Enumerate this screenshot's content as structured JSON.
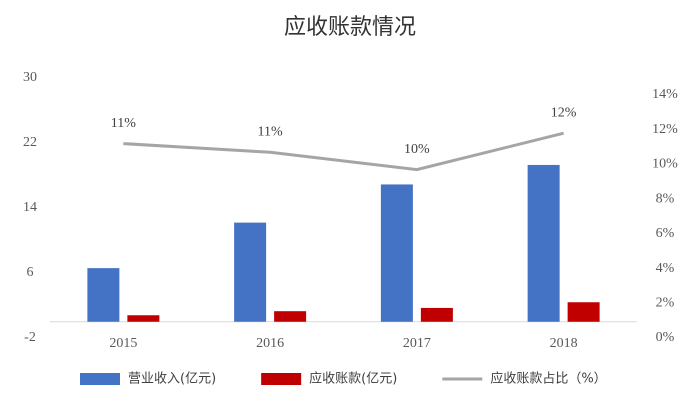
{
  "chart_data": {
    "type": "bar",
    "title": "应收账款情况",
    "categories": [
      "2015",
      "2016",
      "2017",
      "2018"
    ],
    "series": [
      {
        "name": "营业收入(亿元)",
        "color": "#4472c4",
        "values": [
          6.6,
          12.2,
          16.9,
          19.3
        ]
      },
      {
        "name": "应收账款(亿元)",
        "color": "#c00000",
        "values": [
          0.8,
          1.3,
          1.7,
          2.4
        ]
      },
      {
        "name": "应收账款占比（%）",
        "type": "line",
        "axis": "y2",
        "color": "#a5a5a5",
        "values": [
          11.2,
          10.7,
          9.7,
          11.8
        ],
        "value_labels": [
          "11%",
          "11%",
          "10%",
          "12%"
        ]
      }
    ],
    "ylim": [
      -2,
      30
    ],
    "yticks": [
      -2,
      6,
      14,
      22,
      30
    ],
    "y2lim": [
      0,
      14
    ],
    "y2ticks": [
      {
        "value": 0,
        "label": "0%"
      },
      {
        "value": 2,
        "label": "2%"
      },
      {
        "value": 4,
        "label": "4%"
      },
      {
        "value": 6,
        "label": "6%"
      },
      {
        "value": 8,
        "label": "8%"
      },
      {
        "value": 10,
        "label": "10%"
      },
      {
        "value": 12,
        "label": "12%"
      },
      {
        "value": 14,
        "label": "14%"
      }
    ],
    "legend": "bottom"
  }
}
